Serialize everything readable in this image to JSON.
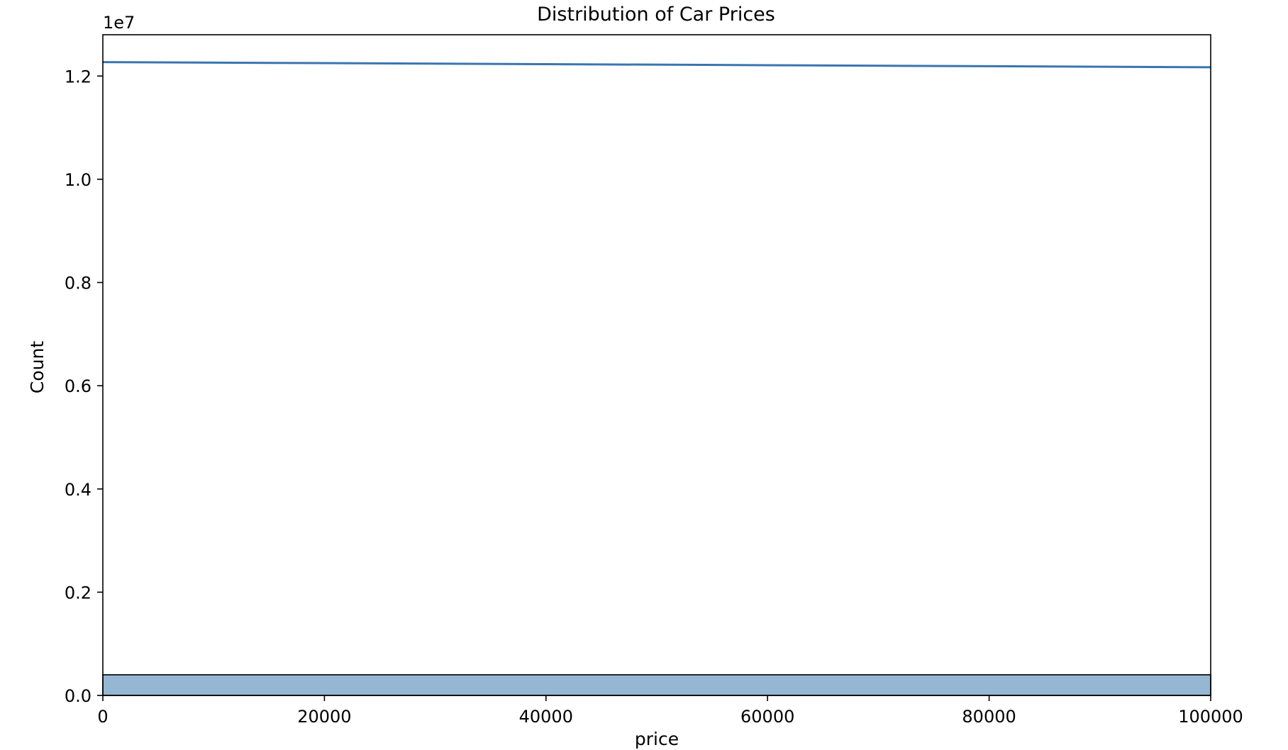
{
  "chart_data": {
    "type": "bar",
    "title": "Distribution of Car Prices",
    "xlabel": "price",
    "ylabel": "Count",
    "y_offset_label": "1e7",
    "xlim": [
      0,
      100000
    ],
    "ylim": [
      0,
      1.28
    ],
    "x_ticks": [
      {
        "value": 0,
        "label": "0"
      },
      {
        "value": 20000,
        "label": "20000"
      },
      {
        "value": 40000,
        "label": "40000"
      },
      {
        "value": 60000,
        "label": "60000"
      },
      {
        "value": 80000,
        "label": "80000"
      },
      {
        "value": 100000,
        "label": "100000"
      }
    ],
    "y_ticks": [
      {
        "value": 0.0,
        "label": "0.0"
      },
      {
        "value": 0.2,
        "label": "0.2"
      },
      {
        "value": 0.4,
        "label": "0.4"
      },
      {
        "value": 0.6,
        "label": "0.6"
      },
      {
        "value": 0.8,
        "label": "0.8"
      },
      {
        "value": 1.0,
        "label": "1.0"
      },
      {
        "value": 1.2,
        "label": "1.2"
      }
    ],
    "bars": [
      {
        "x_start": 0,
        "x_end": 100000,
        "value": 0.04
      }
    ],
    "kde_line": {
      "x": [
        0,
        20000,
        40000,
        60000,
        80000,
        100000
      ],
      "y": [
        1.227,
        1.225,
        1.223,
        1.221,
        1.219,
        1.217
      ]
    },
    "grid": false,
    "colors": {
      "bar_fill": "#95b7d4",
      "bar_edge": "#000000",
      "line": "#3a75b0",
      "axes": "#000000"
    }
  }
}
